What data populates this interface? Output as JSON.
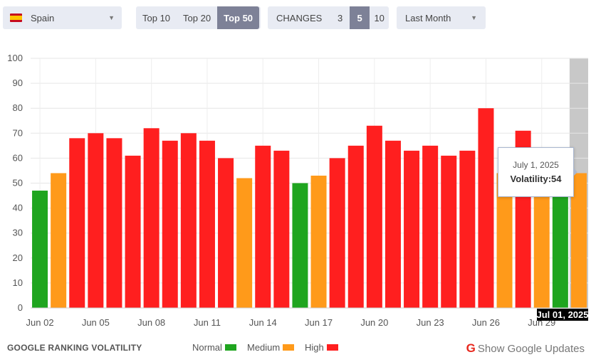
{
  "controls": {
    "country": {
      "label": "Spain",
      "flag": "spain-flag-icon"
    },
    "top_options": [
      "Top 10",
      "Top 20",
      "Top 50"
    ],
    "top_selected": "Top 50",
    "changes_label": "CHANGES",
    "changes_options": [
      "3",
      "5",
      "10"
    ],
    "changes_selected": "5",
    "period": "Last Month"
  },
  "chart_data": {
    "type": "bar",
    "title": "",
    "xlabel": "",
    "ylabel": "",
    "ylim": [
      0,
      100
    ],
    "yticks": [
      0,
      10,
      20,
      30,
      40,
      50,
      60,
      70,
      80,
      90,
      100
    ],
    "grid": true,
    "categories": [
      "Jun 02",
      "Jun 03",
      "Jun 04",
      "Jun 05",
      "Jun 06",
      "Jun 07",
      "Jun 08",
      "Jun 09",
      "Jun 10",
      "Jun 11",
      "Jun 12",
      "Jun 13",
      "Jun 14",
      "Jun 15",
      "Jun 16",
      "Jun 17",
      "Jun 18",
      "Jun 19",
      "Jun 20",
      "Jun 21",
      "Jun 22",
      "Jun 23",
      "Jun 24",
      "Jun 25",
      "Jun 26",
      "Jun 27",
      "Jun 28",
      "Jun 29",
      "Jun 30",
      "Jul 01"
    ],
    "values": [
      47,
      54,
      68,
      70,
      68,
      61,
      72,
      67,
      70,
      67,
      60,
      52,
      65,
      63,
      50,
      53,
      60,
      65,
      73,
      67,
      63,
      65,
      61,
      63,
      80,
      54,
      71,
      54,
      54,
      54
    ],
    "levels": [
      "normal",
      "medium",
      "high",
      "high",
      "high",
      "high",
      "high",
      "high",
      "high",
      "high",
      "high",
      "medium",
      "high",
      "high",
      "normal",
      "medium",
      "high",
      "high",
      "high",
      "high",
      "high",
      "high",
      "high",
      "high",
      "high",
      "medium",
      "high",
      "medium",
      "normal",
      "medium"
    ],
    "x_tick_labels": [
      "Jun 02",
      "Jun 05",
      "Jun 08",
      "Jun 11",
      "Jun 14",
      "Jun 17",
      "Jun 20",
      "Jun 23",
      "Jun 26",
      "Jun 29"
    ],
    "highlighted_label": "Jul 01, 2025",
    "colors": {
      "normal": "#1fa51f",
      "medium": "#ff9a1a",
      "high": "#ff1f1f",
      "highlight_band": "#c8c8c8"
    }
  },
  "tooltip": {
    "date": "July 1, 2025",
    "text": "Volatility:54"
  },
  "footer": {
    "title": "GOOGLE RANKING VOLATILITY",
    "legend": [
      {
        "label": "Normal",
        "color": "#1fa51f"
      },
      {
        "label": "Medium",
        "color": "#ff9a1a"
      },
      {
        "label": "High",
        "color": "#ff1f1f"
      }
    ],
    "google_updates_label": "Show Google Updates"
  }
}
